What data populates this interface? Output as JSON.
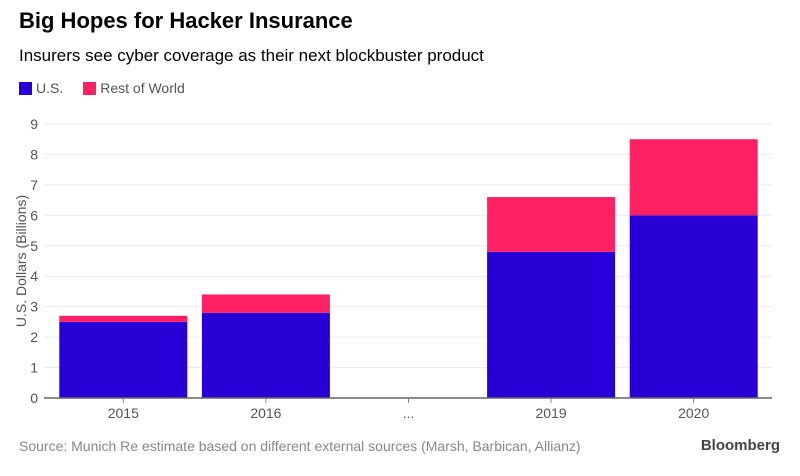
{
  "title": "Big Hopes for Hacker Insurance",
  "subtitle": "Insurers see cyber coverage as their next blockbuster product",
  "source": "Source: Munich Re estimate based on different external sources (Marsh, Barbican, Allianz)",
  "brand": "Bloomberg",
  "chart_data": {
    "type": "bar",
    "stacked": true,
    "categories": [
      "2015",
      "2016",
      "...",
      "2019",
      "2020"
    ],
    "series": [
      {
        "name": "U.S.",
        "color": "#2800D7",
        "values": [
          2.5,
          2.8,
          null,
          4.8,
          6.0
        ]
      },
      {
        "name": "Rest of World",
        "color": "#FF2063",
        "values": [
          0.2,
          0.6,
          null,
          1.8,
          2.5
        ]
      }
    ],
    "ylabel": "U.S. Dollars (Billions)",
    "ylim": [
      0,
      9
    ],
    "yticks": [
      "0",
      "1",
      "2",
      "3",
      "4",
      "5",
      "6",
      "7",
      "8",
      "9"
    ],
    "grid": true,
    "legend": "top-left"
  }
}
